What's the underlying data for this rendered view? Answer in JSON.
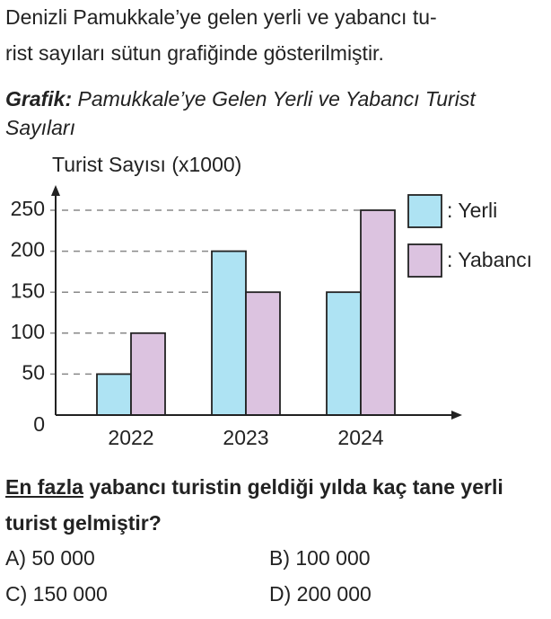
{
  "intro": [
    "Denizli Pamukkale’ye gelen yerli ve yabancı tu-",
    "rist sayıları sütun grafiğinde gösterilmiştir."
  ],
  "caption": {
    "label": "Grafik:",
    "title": "Pamukkale’ye Gelen Yerli ve Yabancı Turist Sayıları"
  },
  "chart_data": {
    "type": "bar",
    "y_label": "Turist Sayısı (x1000)",
    "categories": [
      "2022",
      "2023",
      "2024"
    ],
    "series": [
      {
        "name": ": Yerli",
        "color": "#aee3f3",
        "values": [
          50,
          200,
          150
        ]
      },
      {
        "name": ": Yabancı",
        "color": "#dcc3e0",
        "values": [
          100,
          150,
          250
        ]
      }
    ],
    "ylim": [
      0,
      275
    ],
    "yticks": [
      0,
      50,
      100,
      150,
      200,
      250
    ],
    "grid": true,
    "legend": "right"
  },
  "question": {
    "emphasis": "En fazla",
    "text": "yabancı turistin geldiği yılda kaç tane yerli turist gelmiştir?"
  },
  "options": [
    "A) 50 000",
    "B) 100 000",
    "C) 150 000",
    "D) 200 000"
  ]
}
